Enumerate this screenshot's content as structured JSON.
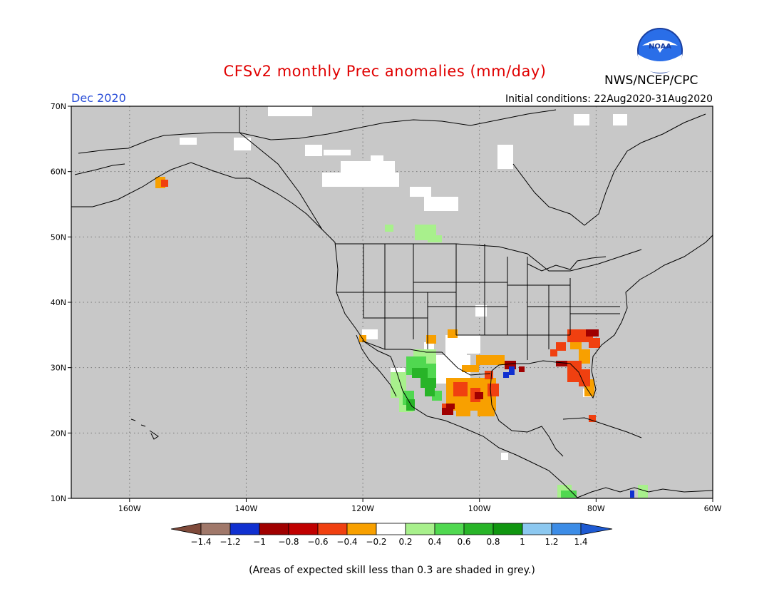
{
  "title": "CFSv2 monthly Prec anomalies (mm/day)",
  "organization": "NWS/NCEP/CPC",
  "logo_label": "NOAA",
  "month": "Dec 2020",
  "initial_conditions": "Initial conditions: 22Aug2020-31Aug2020",
  "footnote": "(Areas of expected skill less than 0.3 are shaded in grey.)",
  "map": {
    "background_color": "#c8c8c8",
    "lon_range": [
      -170,
      -60
    ],
    "lat_range": [
      10,
      70
    ],
    "lat_ticks": [
      {
        "value": 70,
        "label": "70N"
      },
      {
        "value": 60,
        "label": "60N"
      },
      {
        "value": 50,
        "label": "50N"
      },
      {
        "value": 40,
        "label": "40N"
      },
      {
        "value": 30,
        "label": "30N"
      },
      {
        "value": 20,
        "label": "20N"
      },
      {
        "value": 10,
        "label": "10N"
      }
    ],
    "lon_ticks": [
      {
        "value": -160,
        "label": "160W"
      },
      {
        "value": -140,
        "label": "140W"
      },
      {
        "value": -120,
        "label": "120W"
      },
      {
        "value": -100,
        "label": "100W"
      },
      {
        "value": -80,
        "label": "80W"
      },
      {
        "value": -60,
        "label": "60W"
      }
    ]
  },
  "colorbar": {
    "colors": [
      "#7f4a3a",
      "#a0786a",
      "#1030d0",
      "#a00000",
      "#c00000",
      "#f04010",
      "#f8a000",
      "#ffffff",
      "#a8f08c",
      "#50d850",
      "#28b428",
      "#109610",
      "#8cc8f0",
      "#3c8ce6",
      "#1e5ad2"
    ],
    "labels": [
      "-1.4",
      "-1.2",
      "-1",
      "-0.8",
      "-0.6",
      "-0.4",
      "-0.2",
      "0.2",
      "0.4",
      "0.6",
      "0.8",
      "1",
      "1.2",
      "1.4"
    ]
  }
}
